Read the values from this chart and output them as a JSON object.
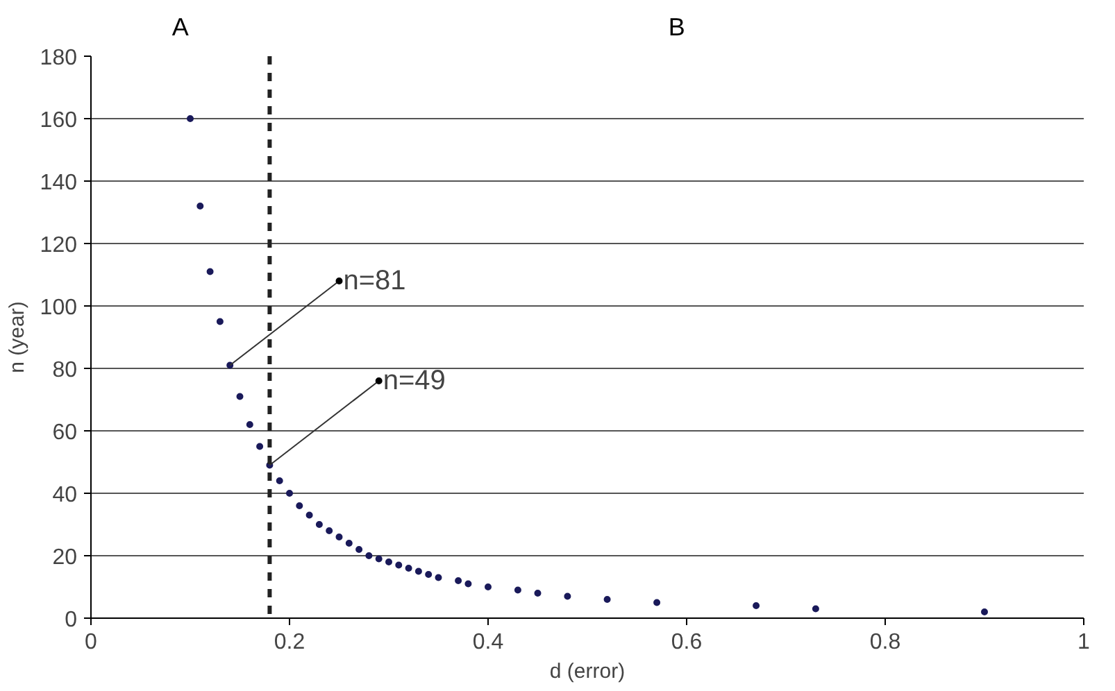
{
  "chart_data": {
    "type": "scatter",
    "xlabel": "d (error)",
    "ylabel": "n (year)",
    "x": [
      0.1,
      0.11,
      0.12,
      0.13,
      0.14,
      0.15,
      0.16,
      0.17,
      0.18,
      0.19,
      0.2,
      0.21,
      0.22,
      0.23,
      0.24,
      0.25,
      0.26,
      0.27,
      0.28,
      0.29,
      0.3,
      0.31,
      0.32,
      0.33,
      0.34,
      0.35,
      0.37,
      0.38,
      0.4,
      0.43,
      0.45,
      0.48,
      0.52,
      0.57,
      0.67,
      0.73,
      0.9
    ],
    "values": [
      160,
      132,
      111,
      95,
      81,
      71,
      62,
      55,
      49,
      44,
      40,
      36,
      33,
      30,
      28,
      26,
      24,
      22,
      20,
      19,
      18,
      17,
      16,
      15,
      14,
      13,
      12,
      11,
      10,
      9,
      8,
      7,
      6,
      5,
      4,
      3,
      2
    ],
    "color": "#1a1a5a",
    "marker": "circle",
    "xlim": [
      0,
      1
    ],
    "xticks": [
      0,
      0.2,
      0.4,
      0.6,
      0.8,
      1
    ],
    "ylim": [
      0,
      180
    ],
    "yticks": [
      0,
      20,
      40,
      60,
      80,
      100,
      120,
      140,
      160,
      180
    ],
    "grid": "y",
    "ref_lines": [
      {
        "axis": "x",
        "value": 0.18,
        "color": "#222222",
        "line_style": "dashed"
      }
    ],
    "annotations": [
      "A",
      "B",
      {
        "text": "n=81",
        "x": 0.14,
        "y": 81
      },
      {
        "text": "n=49",
        "x": 0.18,
        "y": 49
      }
    ]
  }
}
